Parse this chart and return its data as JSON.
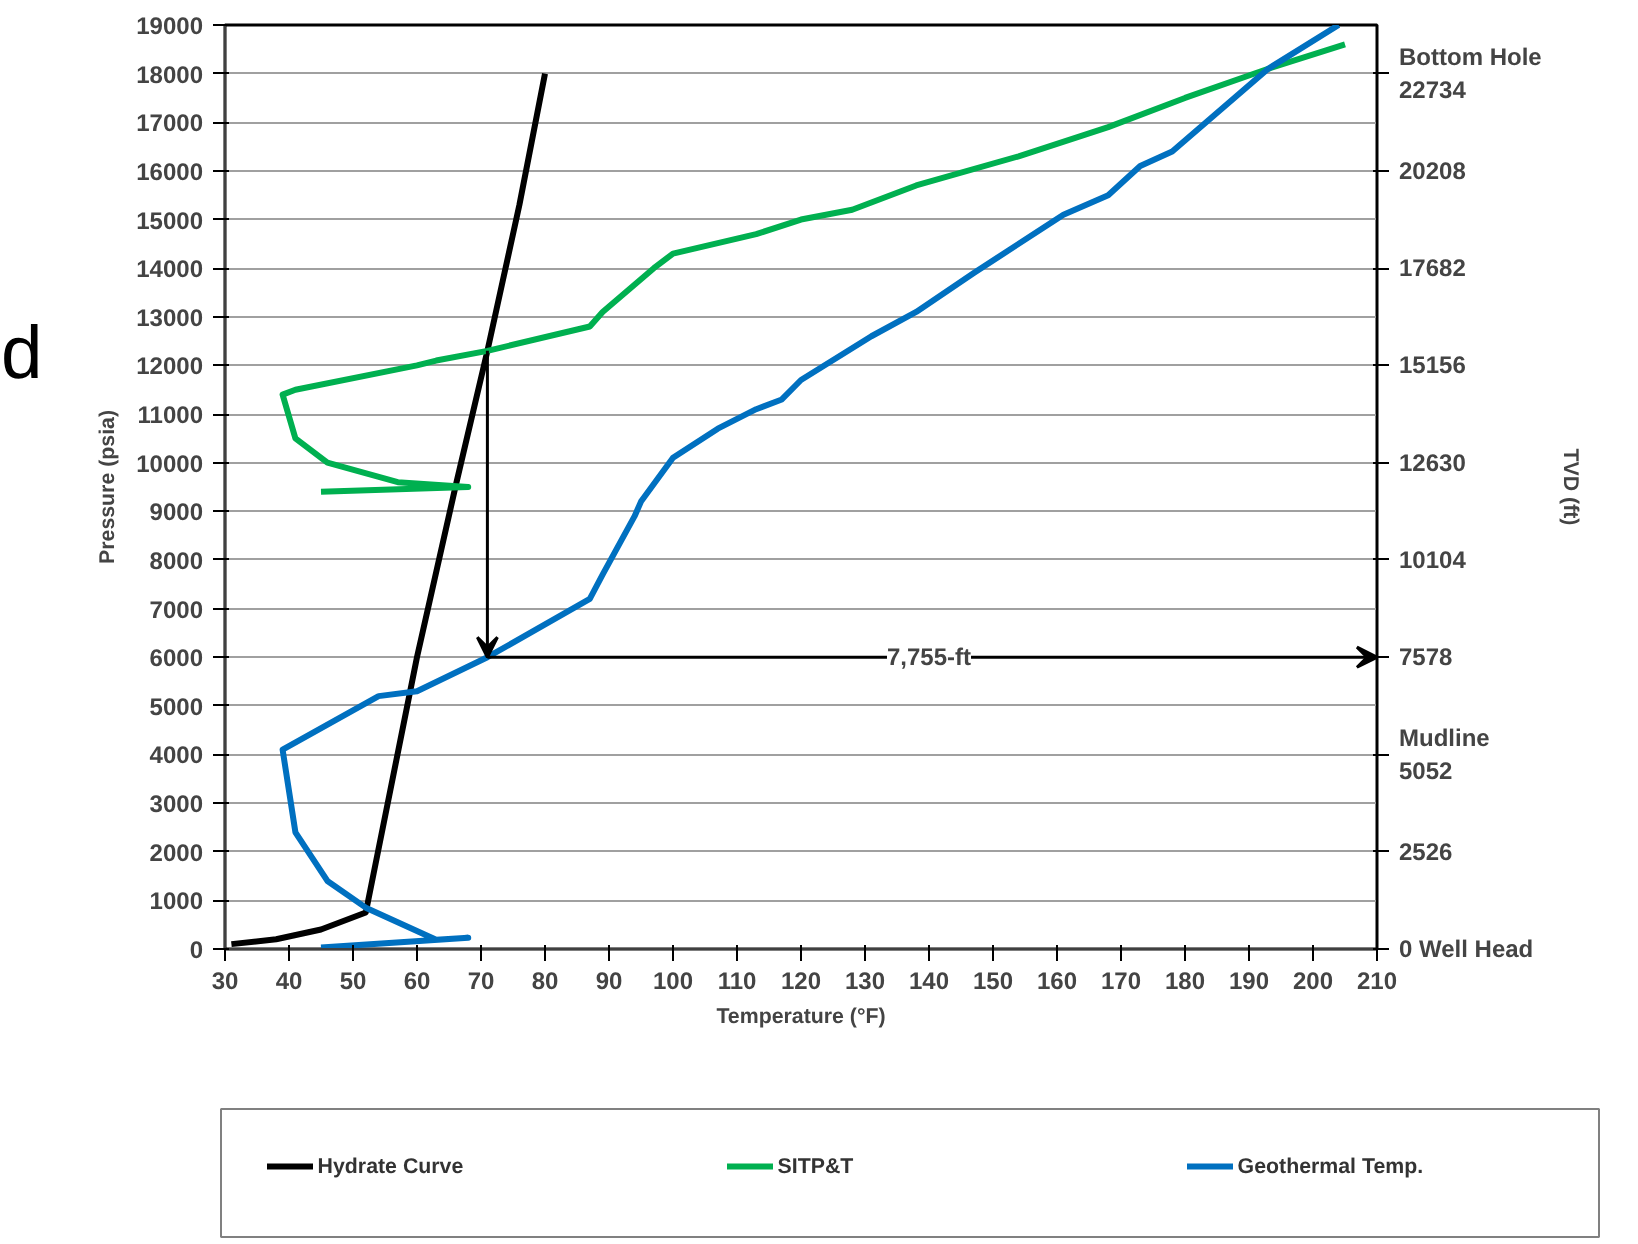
{
  "chart_data": {
    "type": "line",
    "xlabel": "Temperature (°F)",
    "ylabel": "Pressure (psia)",
    "y2label": "TVD (ft)",
    "xlim": [
      30,
      210
    ],
    "xticks": [
      30,
      40,
      50,
      60,
      70,
      80,
      90,
      100,
      110,
      120,
      130,
      140,
      150,
      160,
      170,
      180,
      190,
      200,
      210
    ],
    "ylim": [
      0,
      19000
    ],
    "yticks": [
      0,
      1000,
      2000,
      3000,
      4000,
      5000,
      6000,
      7000,
      8000,
      9000,
      10000,
      11000,
      12000,
      13000,
      14000,
      15000,
      16000,
      17000,
      18000,
      19000
    ],
    "y2lim": [
      0,
      23997
    ],
    "y2ticks": [
      {
        "value": 0,
        "label": "0 Well Head"
      },
      2526,
      {
        "value": 5052,
        "label": "Mudline\n5052"
      },
      7578,
      10104,
      12630,
      15156,
      17682,
      20208,
      {
        "value": 22734,
        "label": "Bottom Hole\n22734"
      }
    ],
    "grid": "y",
    "legend": "bottom",
    "marker": "none",
    "line_style": "solid",
    "series": [
      {
        "name": "Hydrate Curve",
        "color": "#000000",
        "x": [
          31,
          38,
          45,
          52,
          60,
          66,
          71,
          76,
          80
        ],
        "values": [
          100,
          200,
          400,
          750,
          6000,
          9500,
          12300,
          15300,
          18000
        ]
      },
      {
        "name": "SITP&T",
        "color": "#00b050",
        "x": [
          45,
          68,
          57,
          46,
          41,
          39,
          41,
          60,
          63,
          71,
          87,
          89,
          97,
          100,
          113,
          120,
          128,
          138,
          154,
          168,
          180,
          193,
          205
        ],
        "values": [
          9400,
          9500,
          9600,
          10000,
          10500,
          11400,
          11500,
          12000,
          12100,
          12300,
          12800,
          13100,
          14000,
          14300,
          14700,
          15000,
          15200,
          15700,
          16300,
          16900,
          17500,
          18100,
          18600
        ]
      },
      {
        "name": "Geothermal Temp.",
        "color": "#0070c0",
        "x": [
          45,
          68,
          63,
          52,
          46,
          41,
          39,
          54,
          60,
          71,
          87,
          89,
          94,
          95,
          100,
          107,
          113,
          117,
          120,
          131,
          138,
          147,
          161,
          168,
          173,
          178,
          193,
          204
        ],
        "values": [
          30,
          230,
          190,
          850,
          1400,
          2400,
          4100,
          5200,
          5300,
          6000,
          7200,
          7700,
          8900,
          9200,
          10100,
          10700,
          11100,
          11300,
          11700,
          12600,
          13100,
          13900,
          15100,
          15500,
          16100,
          16400,
          18100,
          19000
        ]
      }
    ],
    "annotations": [
      {
        "text": "7,755-ft",
        "x": 140,
        "y": 6000
      },
      "d"
    ]
  }
}
